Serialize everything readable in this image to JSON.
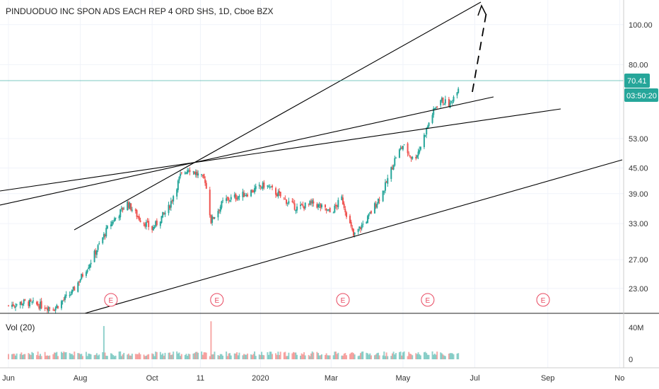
{
  "header": {
    "symbol_title": "PINDUODUO INC SPON ADS EACH REP 4 ORD SHS, 1D, Cboe BZX"
  },
  "volume_pane": {
    "label": "Vol (20)",
    "axis_ticks": [
      {
        "value": 40,
        "label": "40M"
      },
      {
        "value": 0,
        "label": "0"
      }
    ]
  },
  "price_axis": {
    "ticks": [
      {
        "value": 100,
        "label": "100.00"
      },
      {
        "value": 80,
        "label": "80.00"
      },
      {
        "value": 53,
        "label": "53.00"
      },
      {
        "value": 45,
        "label": "45.00"
      },
      {
        "value": 39,
        "label": "39.00"
      },
      {
        "value": 33,
        "label": "33.00"
      },
      {
        "value": 27,
        "label": "27.00"
      },
      {
        "value": 23,
        "label": "23.00"
      }
    ],
    "last_price_label": "70.41",
    "countdown_label": "03:50:20"
  },
  "time_axis": {
    "ticks": [
      {
        "day": 0,
        "label": "Jun"
      },
      {
        "day": 61,
        "label": "Aug"
      },
      {
        "day": 122,
        "label": "Oct"
      },
      {
        "day": 163,
        "label": "11"
      },
      {
        "day": 214,
        "label": "2020"
      },
      {
        "day": 274,
        "label": "Mar"
      },
      {
        "day": 335,
        "label": "May"
      },
      {
        "day": 396,
        "label": "Jul"
      },
      {
        "day": 458,
        "label": "Sep"
      },
      {
        "day": 519,
        "label": "No"
      }
    ]
  },
  "earnings_markers": [
    {
      "day": 87,
      "label": "E"
    },
    {
      "day": 177,
      "label": "E"
    },
    {
      "day": 284,
      "label": "E"
    },
    {
      "day": 356,
      "label": "E"
    },
    {
      "day": 454,
      "label": "E"
    }
  ],
  "colors": {
    "up": "#26a69a",
    "down": "#ef5350",
    "last_price": "#26a69a",
    "trendline": "#000000",
    "earnings": "#e8475f",
    "axis_text": "#333333"
  },
  "chart_data": {
    "type": "candlestick",
    "title": "PINDUODUO INC SPON ADS EACH REP 4 ORD SHS, 1D, Cboe BZX",
    "price_scale": "log",
    "ylim": [
      20.5,
      106
    ],
    "last_price": 70.41,
    "x_range_days_from_jun1_2019": [
      0,
      519
    ],
    "closes_key_points": [
      {
        "date": "2019-06-01",
        "price": 20.9
      },
      {
        "date": "2019-06-15",
        "price": 21.3
      },
      {
        "date": "2019-07-10",
        "price": 20.6
      },
      {
        "date": "2019-07-25",
        "price": 22.5
      },
      {
        "date": "2019-08-10",
        "price": 26.8
      },
      {
        "date": "2019-08-25",
        "price": 32.5
      },
      {
        "date": "2019-09-10",
        "price": 37.0
      },
      {
        "date": "2019-09-20",
        "price": 34.0
      },
      {
        "date": "2019-10-01",
        "price": 32.0
      },
      {
        "date": "2019-10-15",
        "price": 36.0
      },
      {
        "date": "2019-10-25",
        "price": 43.0
      },
      {
        "date": "2019-11-01",
        "price": 45.0
      },
      {
        "date": "2019-11-15",
        "price": 42.0
      },
      {
        "date": "2019-11-20",
        "price": 33.5
      },
      {
        "date": "2019-12-01",
        "price": 37.5
      },
      {
        "date": "2019-12-20",
        "price": 39.0
      },
      {
        "date": "2020-01-05",
        "price": 41.0
      },
      {
        "date": "2020-01-20",
        "price": 38.0
      },
      {
        "date": "2020-02-01",
        "price": 36.0
      },
      {
        "date": "2020-02-15",
        "price": 37.0
      },
      {
        "date": "2020-03-01",
        "price": 35.0
      },
      {
        "date": "2020-03-10",
        "price": 38.0
      },
      {
        "date": "2020-03-20",
        "price": 30.8
      },
      {
        "date": "2020-04-01",
        "price": 34.0
      },
      {
        "date": "2020-04-15",
        "price": 40.0
      },
      {
        "date": "2020-04-25",
        "price": 48.0
      },
      {
        "date": "2020-05-01",
        "price": 51.0
      },
      {
        "date": "2020-05-10",
        "price": 47.0
      },
      {
        "date": "2020-05-15",
        "price": 50.0
      },
      {
        "date": "2020-05-25",
        "price": 60.0
      },
      {
        "date": "2020-06-01",
        "price": 66.0
      },
      {
        "date": "2020-06-10",
        "price": 64.0
      },
      {
        "date": "2020-06-17",
        "price": 71.0
      }
    ],
    "volume_spikes_millions": [
      {
        "date": "2019-08-21",
        "value": 42
      },
      {
        "date": "2019-11-20",
        "value": 48
      }
    ]
  }
}
